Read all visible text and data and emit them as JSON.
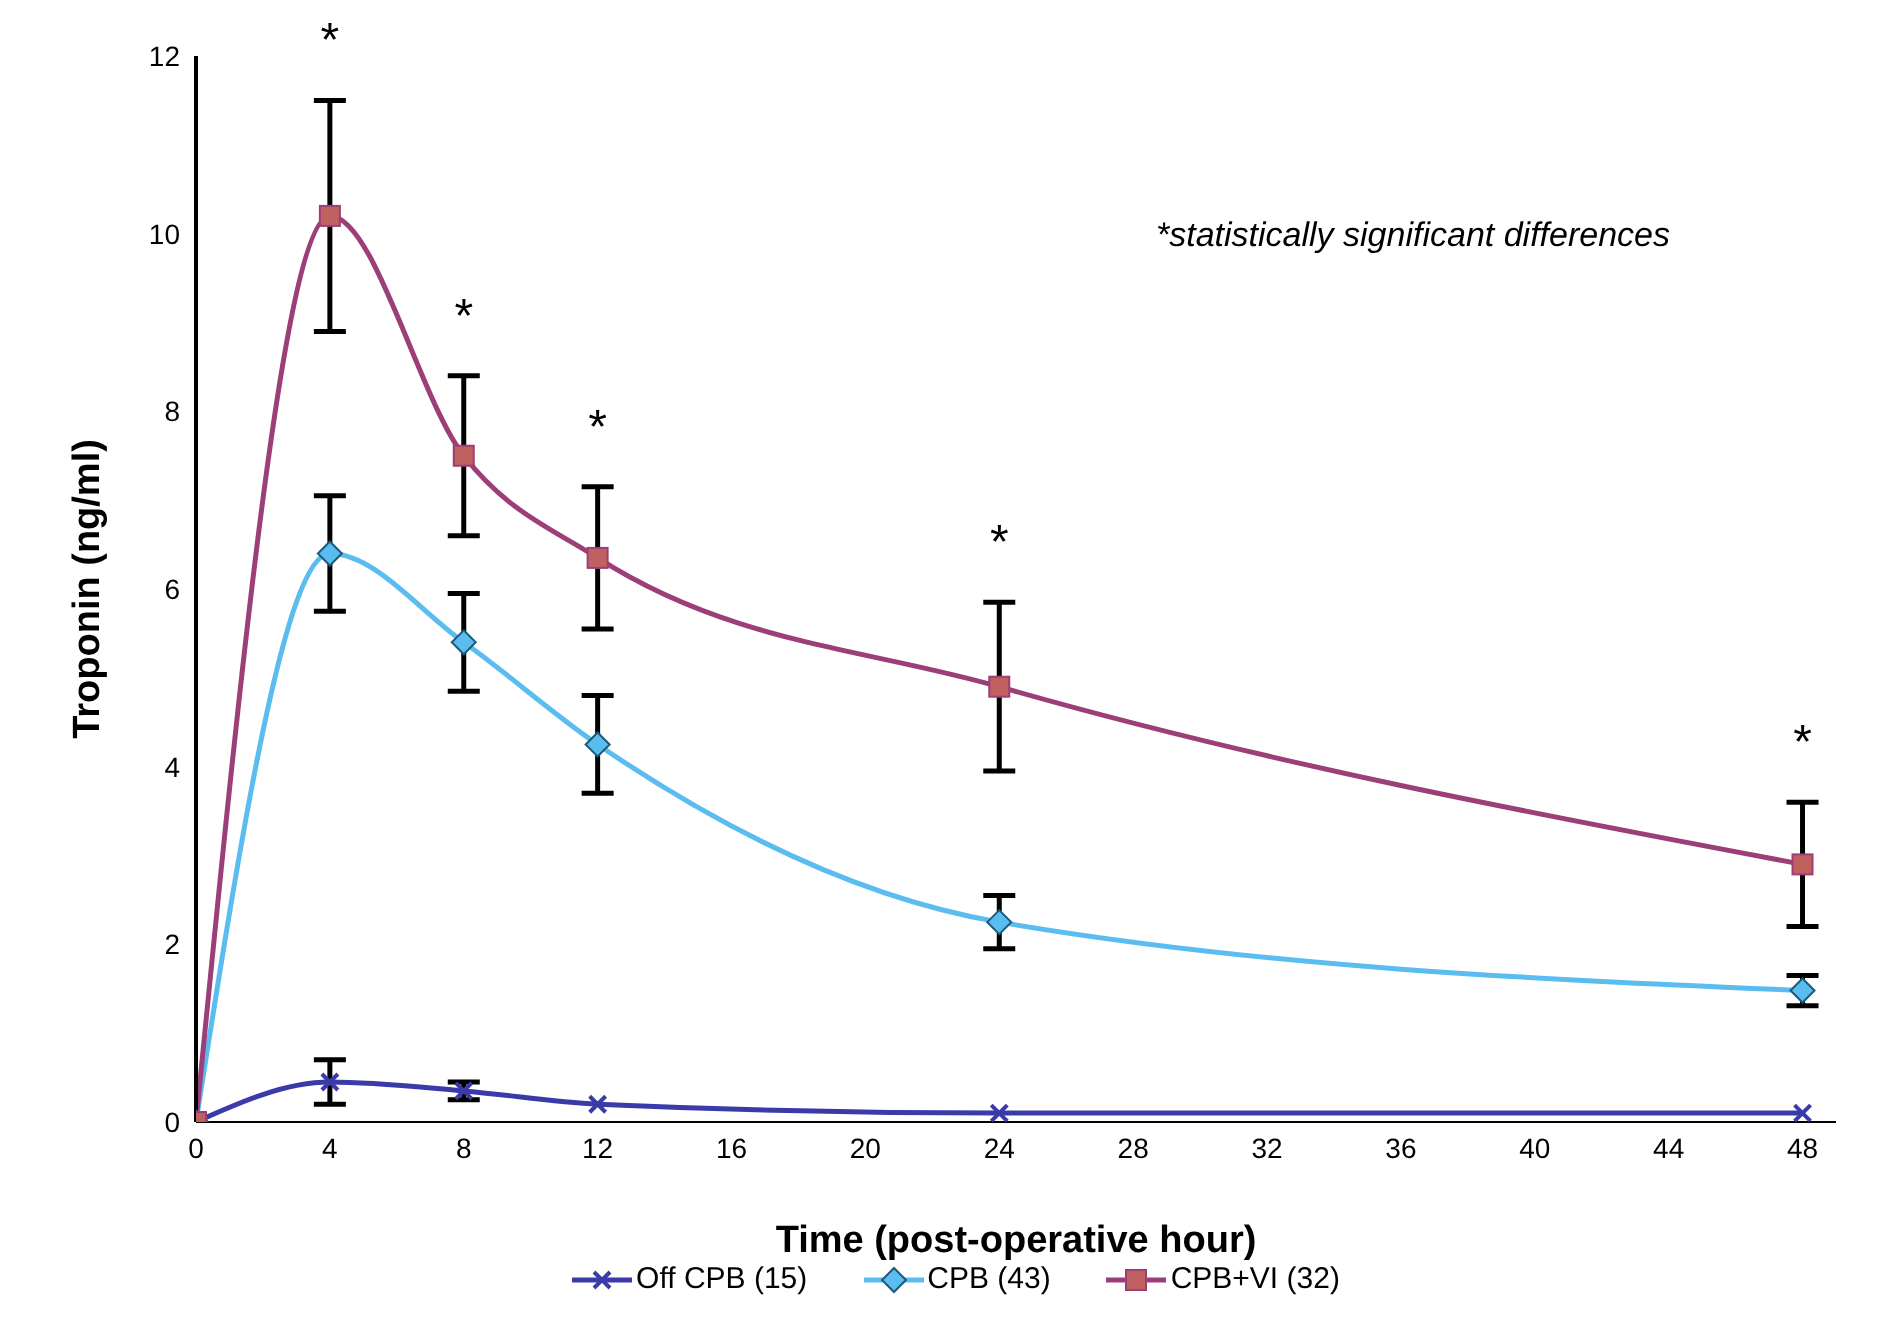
{
  "chart_data": {
    "type": "line",
    "xlabel": "Time (post-operative hour)",
    "ylabel": "Troponin (ng/ml)",
    "xlim": [
      0,
      49
    ],
    "xticks": [
      0,
      4,
      8,
      12,
      16,
      20,
      24,
      28,
      32,
      36,
      40,
      44,
      48
    ],
    "ylim": [
      0,
      12
    ],
    "yticks": [
      0,
      2,
      4,
      6,
      8,
      10,
      12
    ],
    "x": [
      0,
      4,
      8,
      12,
      24,
      48
    ],
    "series": [
      {
        "name": "Off CPB (15)",
        "color": "#3a3aa8",
        "marker": "cross",
        "values": [
          0,
          0.45,
          0.35,
          0.2,
          0.1,
          0.1
        ],
        "errors": [
          null,
          0.25,
          0.1,
          null,
          null,
          null
        ]
      },
      {
        "name": "CPB (43)",
        "color": "#5bbcf0",
        "marker": "diamond",
        "values": [
          0,
          6.4,
          5.4,
          4.25,
          2.25,
          1.48
        ],
        "errors": [
          null,
          0.65,
          0.55,
          0.55,
          0.3,
          0.17
        ]
      },
      {
        "name": "CPB+VI (32)",
        "color": "#9c3f78",
        "marker": "square",
        "values": [
          0,
          10.2,
          7.5,
          6.35,
          4.9,
          2.9
        ],
        "errors": [
          null,
          1.3,
          0.9,
          0.8,
          0.95,
          0.7
        ]
      }
    ],
    "annotations": [
      {
        "text": "*",
        "x": 4,
        "y": 11.5
      },
      {
        "text": "*",
        "x": 8,
        "y": 8.4
      },
      {
        "text": "*",
        "x": 12,
        "y": 7.15
      },
      {
        "text": "*",
        "x": 24,
        "y": 5.85
      },
      {
        "text": "*",
        "x": 48,
        "y": 3.6
      },
      "*statistically significant differences"
    ],
    "grid": false,
    "legend": "bottom"
  }
}
